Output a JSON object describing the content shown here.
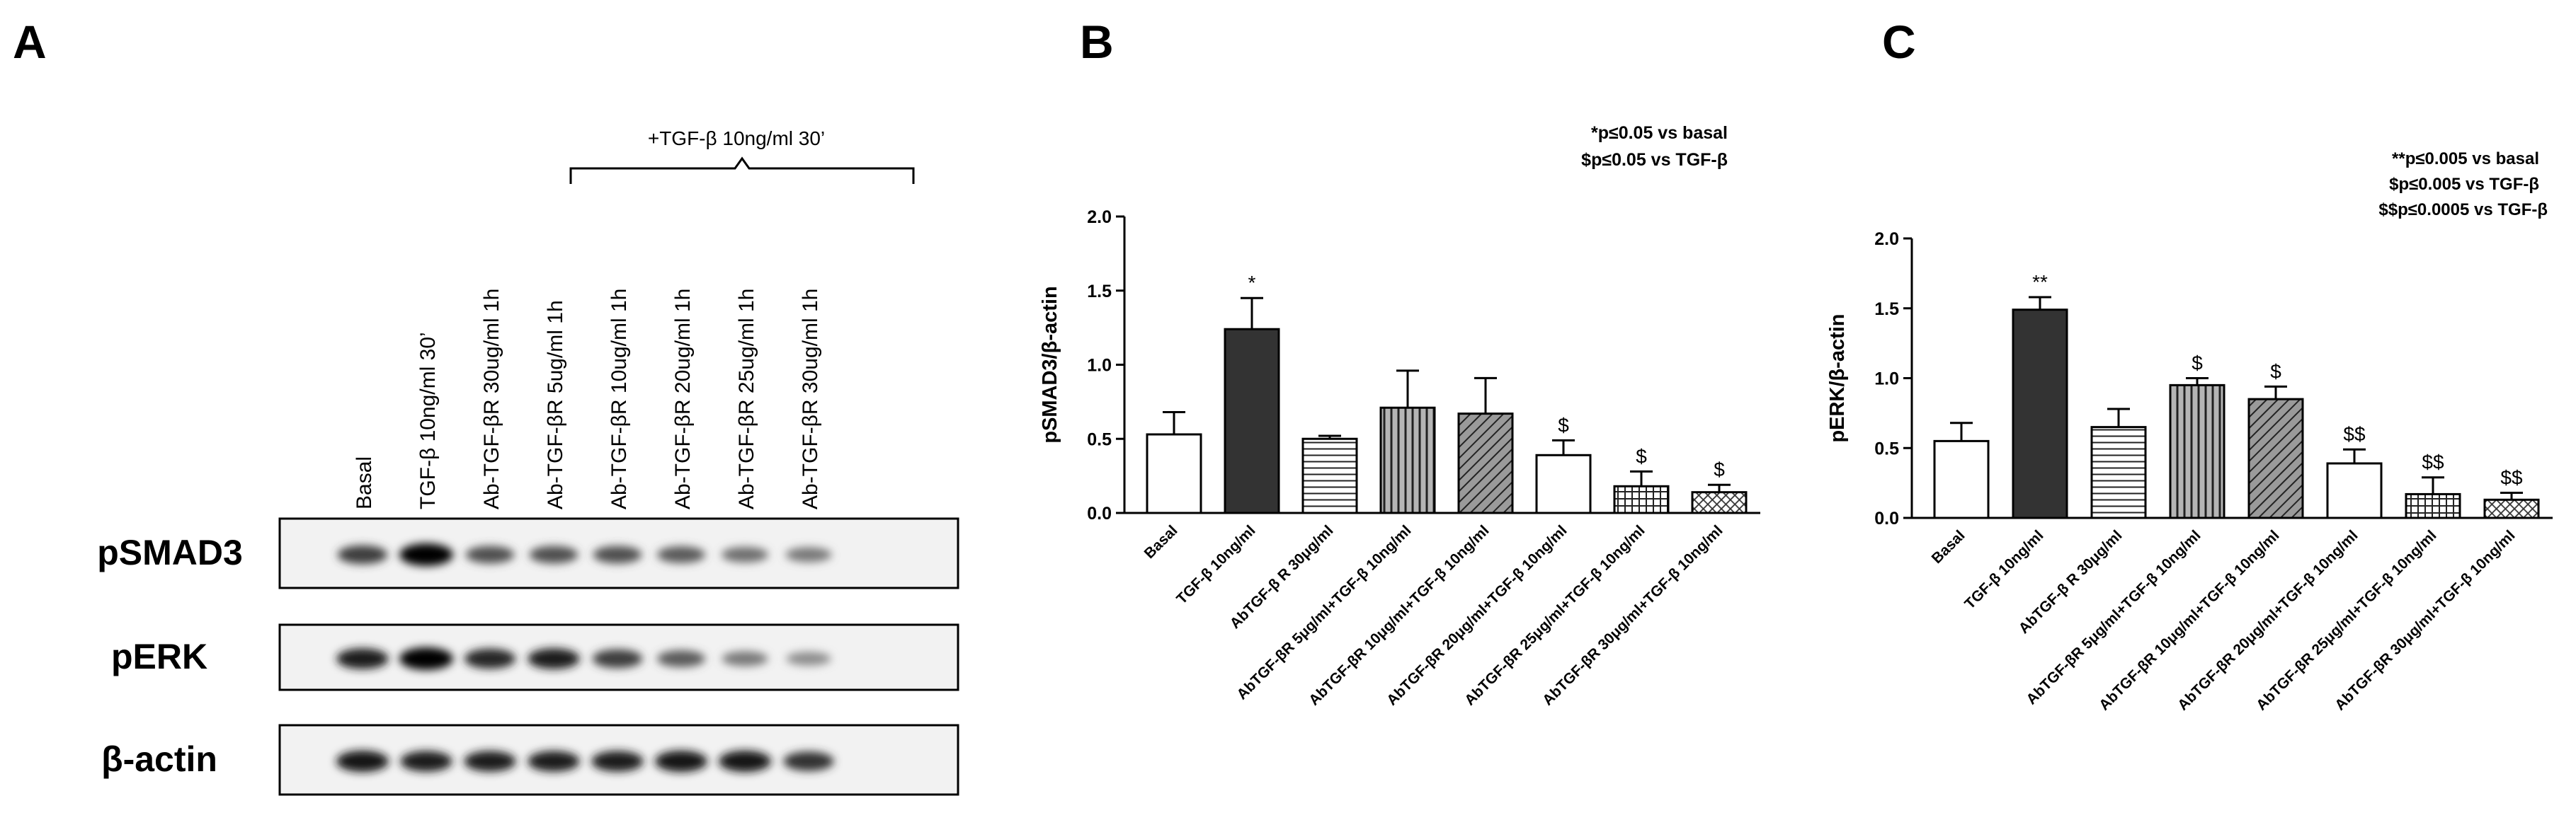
{
  "panels": {
    "A": {
      "letter": "A",
      "bracket_label": "+TGF-β 10ng/ml 30’",
      "lanes": [
        "Basal",
        "TGF-β 10ng/ml 30’",
        "Ab-TGF-βR 30ug/ml 1h",
        "Ab-TGF-βR 5ug/ml 1h",
        "Ab-TGF-βR 10ug/ml 1h",
        "Ab-TGF-βR 20ug/ml 1h",
        "Ab-TGF-βR 25ug/ml 1h",
        "Ab-TGF-βR 30ug/ml 1h"
      ],
      "blots": [
        {
          "label": "pSMAD3",
          "intensity": [
            0.7,
            1.0,
            0.6,
            0.6,
            0.6,
            0.55,
            0.45,
            0.4
          ]
        },
        {
          "label": "pERK",
          "intensity": [
            0.85,
            1.0,
            0.8,
            0.85,
            0.7,
            0.55,
            0.4,
            0.3
          ]
        },
        {
          "label": "β-actin",
          "intensity": [
            0.9,
            0.85,
            0.85,
            0.85,
            0.85,
            0.9,
            0.9,
            0.75
          ]
        }
      ]
    },
    "B": {
      "letter": "B",
      "legend": [
        "*p≤0.05 vs basal",
        "$p≤0.05 vs TGF-β"
      ]
    },
    "C": {
      "letter": "C",
      "legend": [
        "**p≤0.005 vs basal",
        "$p≤0.005 vs TGF-β",
        "$$p≤0.0005 vs TGF-β"
      ]
    }
  },
  "chart_data": [
    {
      "type": "bar",
      "panel": "B",
      "title": "",
      "xlabel": "",
      "ylabel": "pSMAD3/β-actin",
      "ylim": [
        0,
        2.0
      ],
      "yticks": [
        "0.0",
        "0.5",
        "1.0",
        "1.5",
        "2.0"
      ],
      "categories": [
        "Basal",
        "TGF-β 10ng/ml",
        "AbTGF-β R 30μg/ml",
        "AbTGF-βR 5μg/ml+TGF-β 10ng/ml",
        "AbTGF-βR 10μg/ml+TGF-β 10ng/ml",
        "AbTGF-βR 20μg/ml+TGF-β 10ng/ml",
        "AbTGF-βR 25μg/ml+TGF-β 10ng/ml",
        "AbTGF-βR 30μg/ml+TGF-β 10ng/ml"
      ],
      "values": [
        0.53,
        1.24,
        0.5,
        0.71,
        0.67,
        0.39,
        0.18,
        0.14
      ],
      "errors": [
        0.15,
        0.21,
        0.02,
        0.25,
        0.24,
        0.1,
        0.1,
        0.05
      ],
      "annotations": [
        "",
        "*",
        "",
        "",
        "",
        "$",
        "$",
        "$"
      ],
      "patterns": [
        "white",
        "dark",
        "hlines",
        "vlines",
        "diag",
        "white",
        "grid",
        "diaggrid"
      ]
    },
    {
      "type": "bar",
      "panel": "C",
      "title": "",
      "xlabel": "",
      "ylabel": "pERK/β-actin",
      "ylim": [
        0,
        2.0
      ],
      "yticks": [
        "0.0",
        "0.5",
        "1.0",
        "1.5",
        "2.0"
      ],
      "categories": [
        "Basal",
        "TGF-β 10ng/ml",
        "AbTGF-β R 30μg/ml",
        "AbTGF-βR 5μg/ml+TGF-β 10ng/ml",
        "AbTGF-βR 10μg/ml+TGF-β 10ng/ml",
        "AbTGF-βR 20μg/ml+TGF-β 10ng/ml",
        "AbTGF-βR 25μg/ml+TGF-β 10ng/ml",
        "AbTGF-βR 30μg/ml+TGF-β 10ng/ml"
      ],
      "values": [
        0.55,
        1.49,
        0.65,
        0.95,
        0.85,
        0.39,
        0.17,
        0.13
      ],
      "errors": [
        0.13,
        0.09,
        0.13,
        0.05,
        0.09,
        0.1,
        0.12,
        0.05
      ],
      "annotations": [
        "",
        "**",
        "",
        "$",
        "$",
        "$$",
        "$$",
        "$$"
      ],
      "patterns": [
        "white",
        "dark",
        "hlines",
        "vlines",
        "diag",
        "white",
        "grid",
        "diaggrid"
      ]
    }
  ]
}
